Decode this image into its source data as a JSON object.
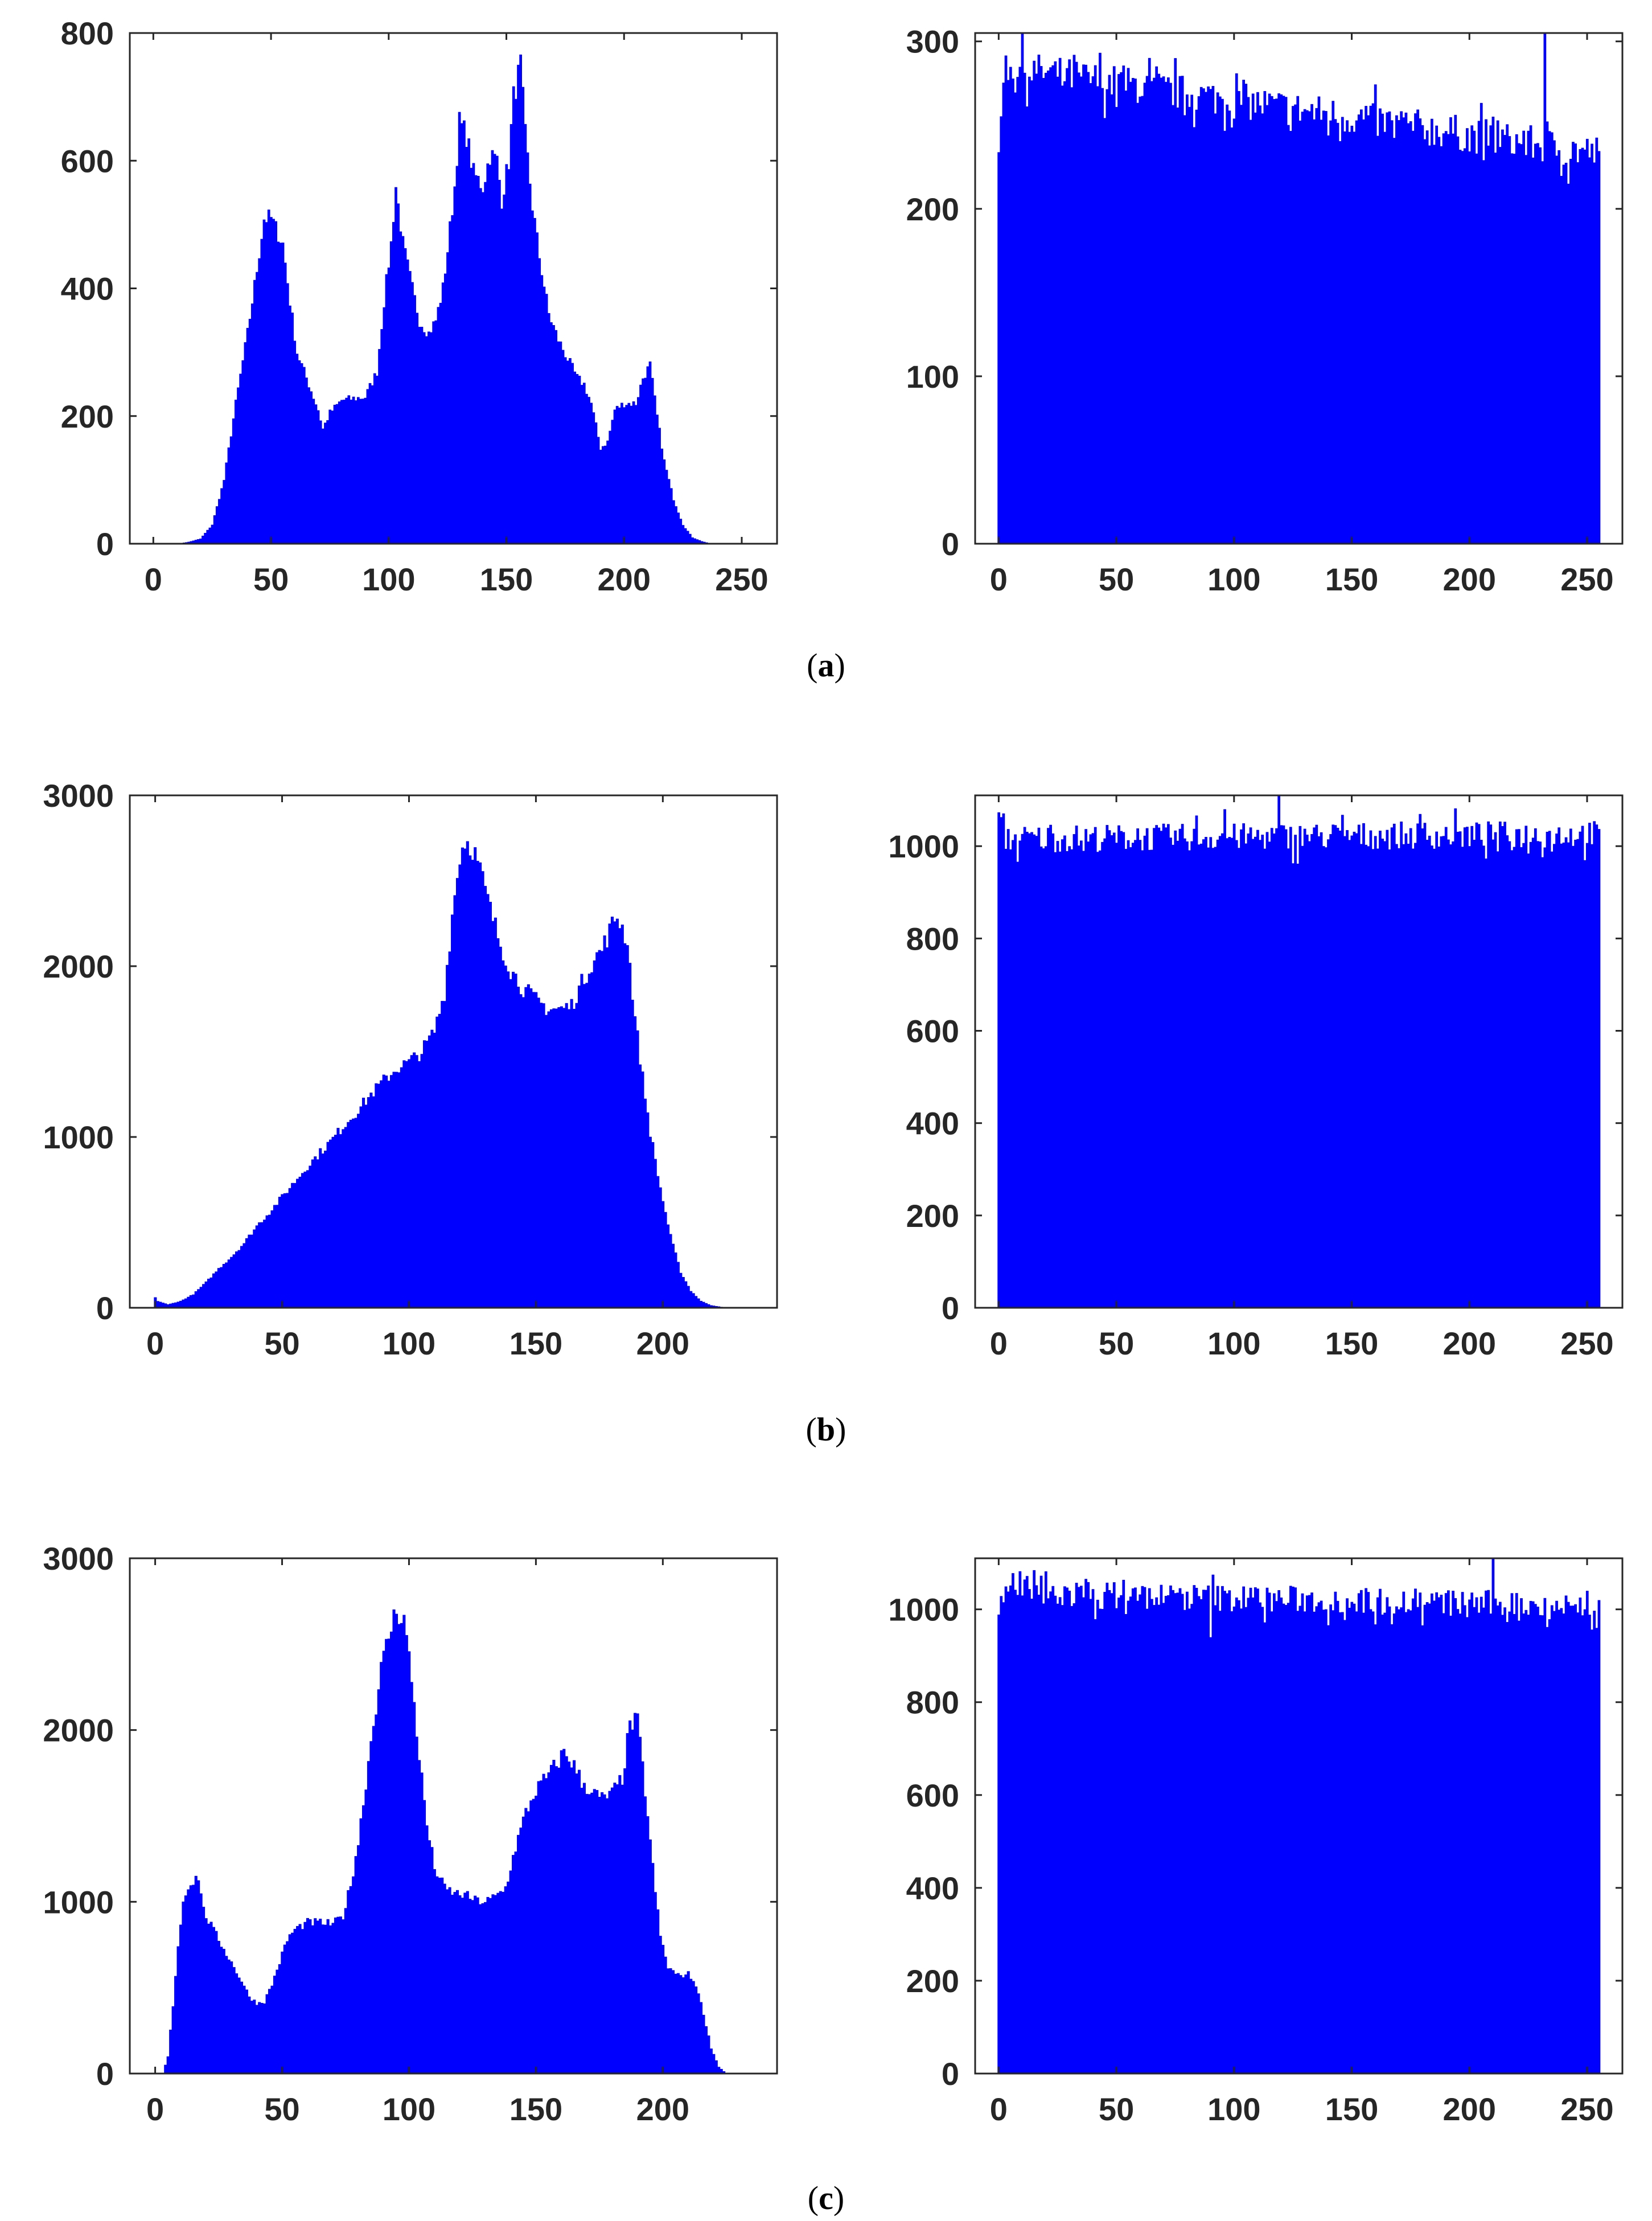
{
  "bar_color": "#0000ff",
  "axis_color": "#262626",
  "captions": [
    "(a)",
    "(b)",
    "(c)"
  ],
  "chart_data": [
    {
      "panel": "(a)",
      "type": "bar",
      "subtype": "histogram",
      "title": "",
      "xlabel": "",
      "ylabel": "",
      "xlim": [
        -10,
        265
      ],
      "ylim": [
        0,
        800
      ],
      "xticks": [
        0,
        50,
        100,
        150,
        200,
        250
      ],
      "yticks": [
        0,
        200,
        400,
        600,
        800
      ],
      "grid": false,
      "profile": [
        [
          0,
          0
        ],
        [
          10,
          0
        ],
        [
          15,
          3
        ],
        [
          20,
          8
        ],
        [
          25,
          30
        ],
        [
          30,
          100
        ],
        [
          35,
          220
        ],
        [
          40,
          330
        ],
        [
          44,
          430
        ],
        [
          47,
          510
        ],
        [
          50,
          510
        ],
        [
          55,
          470
        ],
        [
          58,
          380
        ],
        [
          61,
          300
        ],
        [
          65,
          260
        ],
        [
          70,
          210
        ],
        [
          72,
          180
        ],
        [
          75,
          205
        ],
        [
          80,
          225
        ],
        [
          90,
          230
        ],
        [
          95,
          270
        ],
        [
          98,
          380
        ],
        [
          101,
          470
        ],
        [
          103,
          560
        ],
        [
          106,
          470
        ],
        [
          110,
          400
        ],
        [
          113,
          350
        ],
        [
          117,
          330
        ],
        [
          120,
          350
        ],
        [
          123,
          400
        ],
        [
          125,
          460
        ],
        [
          128,
          560
        ],
        [
          130,
          660
        ],
        [
          133,
          640
        ],
        [
          136,
          580
        ],
        [
          140,
          560
        ],
        [
          143,
          610
        ],
        [
          146,
          600
        ],
        [
          148,
          540
        ],
        [
          151,
          600
        ],
        [
          153,
          700
        ],
        [
          156,
          750
        ],
        [
          158,
          640
        ],
        [
          161,
          530
        ],
        [
          164,
          450
        ],
        [
          168,
          360
        ],
        [
          172,
          320
        ],
        [
          176,
          290
        ],
        [
          180,
          260
        ],
        [
          183,
          250
        ],
        [
          186,
          220
        ],
        [
          190,
          150
        ],
        [
          193,
          160
        ],
        [
          196,
          210
        ],
        [
          200,
          220
        ],
        [
          205,
          220
        ],
        [
          208,
          260
        ],
        [
          211,
          280
        ],
        [
          214,
          200
        ],
        [
          217,
          130
        ],
        [
          221,
          70
        ],
        [
          225,
          30
        ],
        [
          229,
          10
        ],
        [
          233,
          4
        ],
        [
          237,
          0
        ],
        [
          255,
          0
        ]
      ]
    },
    {
      "panel": "(a)",
      "type": "bar",
      "subtype": "histogram",
      "title": "",
      "xlabel": "",
      "ylabel": "",
      "xlim": [
        -10,
        265
      ],
      "ylim": [
        0,
        305
      ],
      "xticks": [
        0,
        50,
        100,
        150,
        200,
        250
      ],
      "yticks": [
        0,
        100,
        200,
        300
      ],
      "grid": false,
      "profile": [
        [
          0,
          235
        ],
        [
          2,
          290
        ],
        [
          255,
          238
        ]
      ],
      "profile_jitter": 20,
      "spikes": [
        [
          232,
          305
        ],
        [
          242,
          215
        ]
      ]
    },
    {
      "panel": "(b)",
      "type": "bar",
      "subtype": "histogram",
      "title": "",
      "xlabel": "",
      "ylabel": "",
      "xlim": [
        -10,
        245
      ],
      "ylim": [
        0,
        3000
      ],
      "xticks": [
        0,
        50,
        100,
        150,
        200
      ],
      "yticks": [
        0,
        1000,
        2000,
        3000
      ],
      "grid": false,
      "profile": [
        [
          0,
          60
        ],
        [
          1,
          40
        ],
        [
          5,
          20
        ],
        [
          10,
          40
        ],
        [
          15,
          80
        ],
        [
          20,
          150
        ],
        [
          25,
          230
        ],
        [
          30,
          300
        ],
        [
          35,
          380
        ],
        [
          40,
          480
        ],
        [
          45,
          560
        ],
        [
          50,
          650
        ],
        [
          55,
          740
        ],
        [
          60,
          830
        ],
        [
          65,
          910
        ],
        [
          70,
          990
        ],
        [
          75,
          1080
        ],
        [
          80,
          1160
        ],
        [
          85,
          1250
        ],
        [
          90,
          1330
        ],
        [
          95,
          1400
        ],
        [
          100,
          1440
        ],
        [
          105,
          1500
        ],
        [
          110,
          1620
        ],
        [
          114,
          1850
        ],
        [
          117,
          2300
        ],
        [
          120,
          2650
        ],
        [
          122,
          2740
        ],
        [
          125,
          2700
        ],
        [
          128,
          2560
        ],
        [
          132,
          2330
        ],
        [
          136,
          2130
        ],
        [
          140,
          1980
        ],
        [
          145,
          1870
        ],
        [
          150,
          1800
        ],
        [
          155,
          1750
        ],
        [
          160,
          1750
        ],
        [
          164,
          1770
        ],
        [
          168,
          1900
        ],
        [
          172,
          2020
        ],
        [
          176,
          2100
        ],
        [
          180,
          2240
        ],
        [
          182,
          2300
        ],
        [
          186,
          2150
        ],
        [
          189,
          1700
        ],
        [
          192,
          1350
        ],
        [
          195,
          1030
        ],
        [
          199,
          700
        ],
        [
          203,
          420
        ],
        [
          207,
          210
        ],
        [
          211,
          100
        ],
        [
          215,
          40
        ],
        [
          219,
          15
        ],
        [
          224,
          3
        ],
        [
          230,
          0
        ]
      ]
    },
    {
      "panel": "(b)",
      "type": "bar",
      "subtype": "histogram",
      "title": "",
      "xlabel": "",
      "ylabel": "",
      "xlim": [
        -10,
        265
      ],
      "ylim": [
        0,
        1110
      ],
      "xticks": [
        0,
        50,
        100,
        150,
        200,
        250
      ],
      "yticks": [
        0,
        200,
        400,
        600,
        800,
        1000
      ],
      "grid": false,
      "profile": [
        [
          0,
          1090
        ],
        [
          2,
          1030
        ],
        [
          255,
          1040
        ]
      ],
      "profile_jitter": 55,
      "spikes": [
        [
          119,
          1110
        ],
        [
          96,
          1080
        ]
      ]
    },
    {
      "panel": "(c)",
      "type": "bar",
      "subtype": "histogram",
      "title": "",
      "xlabel": "",
      "ylabel": "",
      "xlim": [
        -10,
        245
      ],
      "ylim": [
        0,
        3000
      ],
      "xticks": [
        0,
        50,
        100,
        150,
        200
      ],
      "yticks": [
        0,
        1000,
        2000,
        3000
      ],
      "grid": false,
      "profile": [
        [
          0,
          0
        ],
        [
          3,
          0
        ],
        [
          5,
          100
        ],
        [
          7,
          400
        ],
        [
          9,
          750
        ],
        [
          11,
          1000
        ],
        [
          13,
          1100
        ],
        [
          15,
          1120
        ],
        [
          17,
          1150
        ],
        [
          19,
          950
        ],
        [
          22,
          860
        ],
        [
          25,
          780
        ],
        [
          28,
          700
        ],
        [
          31,
          620
        ],
        [
          34,
          540
        ],
        [
          37,
          450
        ],
        [
          40,
          410
        ],
        [
          43,
          420
        ],
        [
          46,
          520
        ],
        [
          49,
          650
        ],
        [
          52,
          780
        ],
        [
          55,
          840
        ],
        [
          60,
          880
        ],
        [
          65,
          880
        ],
        [
          70,
          870
        ],
        [
          74,
          920
        ],
        [
          77,
          1100
        ],
        [
          80,
          1350
        ],
        [
          83,
          1700
        ],
        [
          86,
          2050
        ],
        [
          89,
          2350
        ],
        [
          92,
          2550
        ],
        [
          95,
          2700
        ],
        [
          98,
          2650
        ],
        [
          101,
          2300
        ],
        [
          104,
          1850
        ],
        [
          107,
          1450
        ],
        [
          110,
          1200
        ],
        [
          114,
          1080
        ],
        [
          118,
          1050
        ],
        [
          122,
          1040
        ],
        [
          126,
          1010
        ],
        [
          130,
          1000
        ],
        [
          134,
          1030
        ],
        [
          138,
          1080
        ],
        [
          142,
          1320
        ],
        [
          146,
          1520
        ],
        [
          150,
          1650
        ],
        [
          154,
          1720
        ],
        [
          158,
          1800
        ],
        [
          161,
          1870
        ],
        [
          164,
          1820
        ],
        [
          168,
          1700
        ],
        [
          172,
          1640
        ],
        [
          176,
          1600
        ],
        [
          180,
          1630
        ],
        [
          184,
          1720
        ],
        [
          187,
          2030
        ],
        [
          190,
          2050
        ],
        [
          193,
          1650
        ],
        [
          196,
          1200
        ],
        [
          199,
          800
        ],
        [
          202,
          620
        ],
        [
          206,
          570
        ],
        [
          210,
          580
        ],
        [
          213,
          520
        ],
        [
          216,
          350
        ],
        [
          219,
          150
        ],
        [
          222,
          40
        ],
        [
          225,
          0
        ]
      ]
    },
    {
      "panel": "(c)",
      "type": "bar",
      "subtype": "histogram",
      "title": "",
      "xlabel": "",
      "ylabel": "",
      "xlim": [
        -10,
        265
      ],
      "ylim": [
        0,
        1110
      ],
      "xticks": [
        0,
        50,
        100,
        150,
        200,
        250
      ],
      "yticks": [
        0,
        200,
        400,
        600,
        800,
        1000,
        1100
      ],
      "yticks_shown": [
        0,
        200,
        400,
        600,
        800,
        1000
      ],
      "grid": false,
      "profile": [
        [
          0,
          1020
        ],
        [
          2,
          1050
        ],
        [
          255,
          1020
        ]
      ],
      "profile_jitter": 55,
      "spikes": [
        [
          210,
          1110
        ],
        [
          90,
          940
        ],
        [
          254,
          960
        ]
      ]
    }
  ]
}
